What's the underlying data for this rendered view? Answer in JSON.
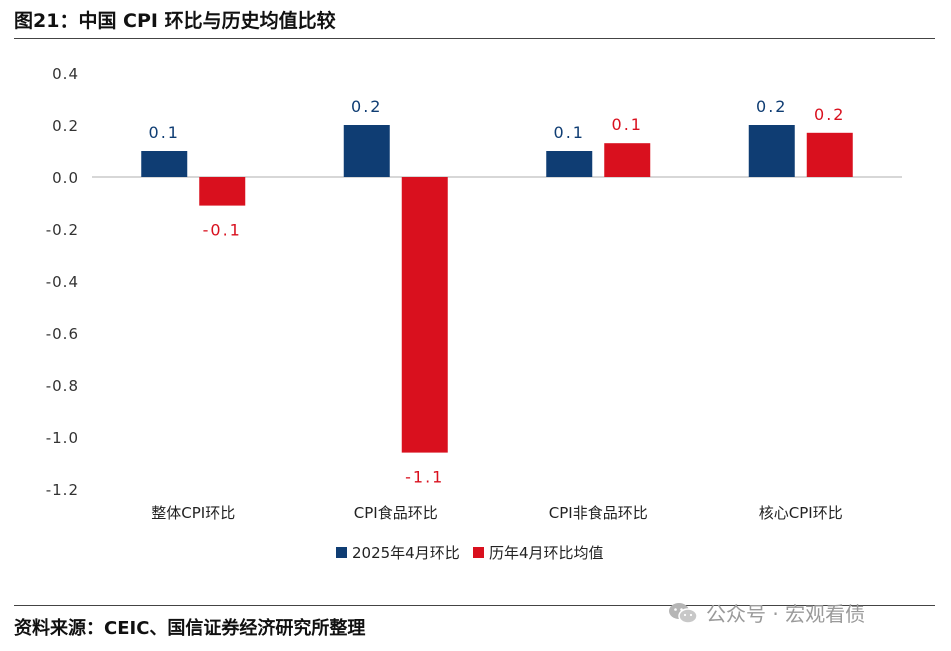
{
  "title": "图21：中国 CPI 环比与历史均值比较",
  "source": "资料来源：CEIC、国信证券经济研究所整理",
  "watermark": "公众号 · 宏观看债",
  "colors": {
    "series1": "#0f3d73",
    "series2": "#d9101e"
  },
  "chart_data": {
    "type": "bar",
    "categories": [
      "整体CPI环比",
      "CPI食品环比",
      "CPI非食品环比",
      "核心CPI环比"
    ],
    "series": [
      {
        "name": "2025年4月环比",
        "values": [
          0.1,
          0.2,
          0.1,
          0.2
        ],
        "labels": [
          "0.1",
          "0.2",
          "0.1",
          "0.2"
        ]
      },
      {
        "name": "历年4月环比均值",
        "values": [
          -0.11,
          -1.06,
          0.13,
          0.17
        ],
        "labels": [
          "-0.1",
          "-1.1",
          "0.1",
          "0.2"
        ]
      }
    ],
    "yticks": [
      "0.4",
      "0.2",
      "0.0",
      "-0.2",
      "-0.4",
      "-0.6",
      "-0.8",
      "-1.0",
      "-1.2"
    ],
    "ylim": [
      -1.2,
      0.4
    ],
    "legend_position": "bottom",
    "grid": false
  }
}
